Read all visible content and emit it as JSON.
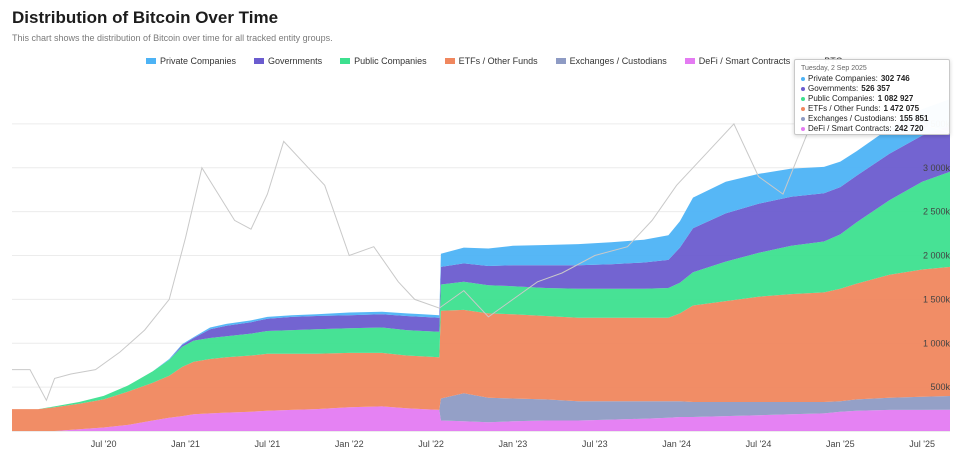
{
  "title": "Distribution of Bitcoin Over Time",
  "subtitle": "This chart shows the distribution of Bitcoin over time for all tracked entity groups.",
  "legend": [
    {
      "name": "Private Companies",
      "color": "#4db3f5"
    },
    {
      "name": "Governments",
      "color": "#6b5ccf"
    },
    {
      "name": "Public Companies",
      "color": "#3de08f"
    },
    {
      "name": "ETFs / Other Funds",
      "color": "#f0875e"
    },
    {
      "name": "Exchanges / Custodians",
      "color": "#8e9bc4"
    },
    {
      "name": "DeFi / Smart Contracts",
      "color": "#e47bf2"
    },
    {
      "name": "BTC",
      "color": "#6f6f6f"
    }
  ],
  "tooltip": {
    "date": "Tuesday, 2 Sep 2025",
    "rows": [
      {
        "label": "Private Companies:",
        "value": "302 746",
        "color": "#4db3f5"
      },
      {
        "label": "Governments:",
        "value": "526 357",
        "color": "#6b5ccf"
      },
      {
        "label": "Public Companies:",
        "value": "1 082 927",
        "color": "#3de08f"
      },
      {
        "label": "ETFs / Other Funds:",
        "value": "1 472 075",
        "color": "#f0875e"
      },
      {
        "label": "Exchanges / Custodians:",
        "value": "155 851",
        "color": "#8e9bc4"
      },
      {
        "label": "DeFi / Smart Contracts:",
        "value": "242 720",
        "color": "#e47bf2"
      }
    ]
  },
  "chart_data": {
    "type": "area",
    "stacked": true,
    "x_tick_labels": [
      "Jul '20",
      "Jan '21",
      "Jul '21",
      "Jan '22",
      "Jul '22",
      "Jan '23",
      "Jul '23",
      "Jan '24",
      "Jul '24",
      "Jan '25",
      "Jul '25"
    ],
    "x_ticks": [
      2020.5,
      2021.0,
      2021.5,
      2022.0,
      2022.5,
      2023.0,
      2023.5,
      2024.0,
      2024.5,
      2025.0,
      2025.5
    ],
    "xlim": [
      2019.94,
      2025.67
    ],
    "y_tick_labels": [
      "500k",
      "1 000k",
      "1 500k",
      "2 000k",
      "2 500k",
      "3 000k",
      "3 500k"
    ],
    "y_ticks": [
      500000,
      1000000,
      1500000,
      2000000,
      2500000,
      3000000,
      3500000
    ],
    "ylim": [
      0,
      4000000
    ],
    "grid": true,
    "legend_position": "top-right",
    "x": [
      2019.94,
      2020.1,
      2020.2,
      2020.35,
      2020.5,
      2020.65,
      2020.8,
      2020.9,
      2020.98,
      2021.05,
      2021.15,
      2021.25,
      2021.4,
      2021.5,
      2021.65,
      2021.8,
      2022.0,
      2022.2,
      2022.35,
      2022.45,
      2022.55,
      2022.56,
      2022.7,
      2022.85,
      2023.0,
      2023.2,
      2023.4,
      2023.6,
      2023.8,
      2023.95,
      2024.02,
      2024.1,
      2024.3,
      2024.5,
      2024.7,
      2024.9,
      2025.0,
      2025.1,
      2025.3,
      2025.5,
      2025.67
    ],
    "series": [
      {
        "name": "DeFi / Smart Contracts",
        "values": [
          0,
          0,
          0,
          20000,
          40000,
          70000,
          120000,
          150000,
          170000,
          190000,
          200000,
          210000,
          220000,
          230000,
          240000,
          250000,
          270000,
          280000,
          260000,
          250000,
          240000,
          120000,
          110000,
          100000,
          110000,
          120000,
          120000,
          130000,
          140000,
          150000,
          160000,
          160000,
          170000,
          180000,
          190000,
          200000,
          220000,
          230000,
          240000,
          240000,
          242720
        ]
      },
      {
        "name": "Exchanges / Custodians",
        "values": [
          0,
          0,
          0,
          0,
          0,
          0,
          0,
          0,
          0,
          0,
          0,
          0,
          0,
          0,
          0,
          0,
          0,
          0,
          0,
          0,
          0,
          250000,
          320000,
          280000,
          260000,
          240000,
          220000,
          210000,
          200000,
          190000,
          180000,
          170000,
          160000,
          150000,
          140000,
          130000,
          120000,
          130000,
          140000,
          150000,
          155851
        ]
      },
      {
        "name": "ETFs / Other Funds",
        "values": [
          250000,
          250000,
          270000,
          290000,
          320000,
          380000,
          430000,
          480000,
          560000,
          600000,
          620000,
          630000,
          640000,
          650000,
          640000,
          630000,
          620000,
          610000,
          600000,
          600000,
          600000,
          1000000,
          950000,
          960000,
          960000,
          950000,
          950000,
          950000,
          950000,
          950000,
          1000000,
          1100000,
          1150000,
          1200000,
          1230000,
          1250000,
          1280000,
          1320000,
          1400000,
          1450000,
          1472075
        ]
      },
      {
        "name": "Public Companies",
        "values": [
          0,
          0,
          10000,
          20000,
          40000,
          70000,
          130000,
          180000,
          230000,
          240000,
          240000,
          240000,
          250000,
          260000,
          270000,
          280000,
          280000,
          290000,
          290000,
          290000,
          290000,
          300000,
          320000,
          320000,
          320000,
          320000,
          330000,
          330000,
          330000,
          340000,
          350000,
          380000,
          450000,
          500000,
          550000,
          580000,
          620000,
          700000,
          850000,
          1000000,
          1082927
        ]
      },
      {
        "name": "Governments",
        "values": [
          0,
          0,
          0,
          0,
          0,
          0,
          0,
          0,
          20000,
          30000,
          100000,
          120000,
          130000,
          140000,
          150000,
          150000,
          150000,
          150000,
          160000,
          160000,
          160000,
          200000,
          210000,
          220000,
          240000,
          260000,
          270000,
          280000,
          300000,
          320000,
          400000,
          500000,
          550000,
          560000,
          560000,
          550000,
          540000,
          530000,
          530000,
          528000,
          526357
        ]
      },
      {
        "name": "Private Companies",
        "values": [
          0,
          0,
          0,
          0,
          0,
          0,
          0,
          10000,
          10000,
          10000,
          20000,
          20000,
          20000,
          20000,
          20000,
          20000,
          30000,
          30000,
          30000,
          30000,
          30000,
          150000,
          180000,
          200000,
          220000,
          230000,
          240000,
          250000,
          260000,
          280000,
          300000,
          350000,
          360000,
          340000,
          320000,
          300000,
          290000,
          280000,
          290000,
          300000,
          302746
        ]
      }
    ],
    "btc_price_line": {
      "name": "BTC",
      "x": [
        2019.94,
        2020.05,
        2020.15,
        2020.2,
        2020.3,
        2020.45,
        2020.6,
        2020.75,
        2020.9,
        2021.0,
        2021.1,
        2021.2,
        2021.3,
        2021.4,
        2021.5,
        2021.6,
        2021.75,
        2021.85,
        2022.0,
        2022.15,
        2022.3,
        2022.4,
        2022.55,
        2022.7,
        2022.85,
        2023.0,
        2023.15,
        2023.3,
        2023.5,
        2023.7,
        2023.85,
        2024.0,
        2024.2,
        2024.35,
        2024.5,
        2024.65,
        2024.8,
        2024.95,
        2025.05,
        2025.2,
        2025.35,
        2025.5,
        2025.67
      ],
      "values": [
        700000,
        700000,
        350000,
        600000,
        650000,
        700000,
        900000,
        1150000,
        1500000,
        2200000,
        3000000,
        2700000,
        2400000,
        2300000,
        2700000,
        3300000,
        3000000,
        2800000,
        2000000,
        2100000,
        1700000,
        1500000,
        1400000,
        1600000,
        1300000,
        1500000,
        1700000,
        1800000,
        2000000,
        2100000,
        2400000,
        2800000,
        3200000,
        3500000,
        2900000,
        2700000,
        3400000,
        3800000,
        4000000,
        3800000,
        3600000,
        3500000,
        3400000
      ]
    }
  }
}
